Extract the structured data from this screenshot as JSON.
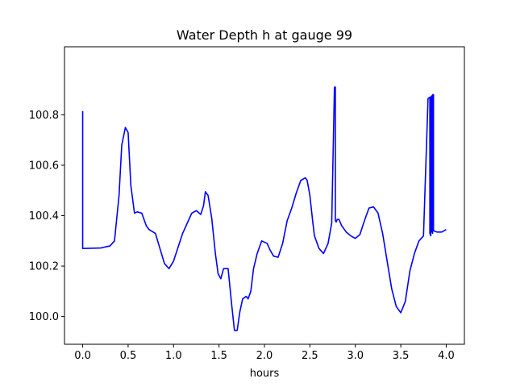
{
  "chart_data": {
    "type": "line",
    "title": "Water Depth h at gauge 99",
    "xlabel": "hours",
    "ylabel": "",
    "xlim": [
      -0.2,
      4.2
    ],
    "ylim": [
      99.89,
      101.07
    ],
    "xticks": [
      0.0,
      0.5,
      1.0,
      1.5,
      2.0,
      2.5,
      3.0,
      3.5,
      4.0
    ],
    "xtick_labels": [
      "0.0",
      "0.5",
      "1.0",
      "1.5",
      "2.0",
      "2.5",
      "3.0",
      "3.5",
      "4.0"
    ],
    "yticks": [
      100.0,
      100.2,
      100.4,
      100.6,
      100.8
    ],
    "ytick_labels": [
      "100.0",
      "100.2",
      "100.4",
      "100.6",
      "100.8"
    ],
    "grid": false,
    "series": [
      {
        "color": "#0000ff",
        "x": [
          0.0,
          0.0,
          0.0,
          0.2,
          0.3,
          0.35,
          0.4,
          0.43,
          0.47,
          0.5,
          0.53,
          0.57,
          0.6,
          0.65,
          0.7,
          0.73,
          0.8,
          0.85,
          0.9,
          0.95,
          1.0,
          1.1,
          1.2,
          1.25,
          1.3,
          1.33,
          1.35,
          1.38,
          1.42,
          1.46,
          1.49,
          1.52,
          1.55,
          1.6,
          1.64,
          1.67,
          1.7,
          1.73,
          1.76,
          1.8,
          1.82,
          1.85,
          1.88,
          1.92,
          1.97,
          2.03,
          2.06,
          2.1,
          2.15,
          2.2,
          2.25,
          2.3,
          2.35,
          2.4,
          2.45,
          2.47,
          2.5,
          2.53,
          2.55,
          2.6,
          2.65,
          2.7,
          2.74,
          2.77,
          2.78,
          2.78,
          2.79,
          2.8,
          2.82,
          2.85,
          2.9,
          2.95,
          3.0,
          3.05,
          3.1,
          3.15,
          3.2,
          3.25,
          3.3,
          3.35,
          3.4,
          3.45,
          3.5,
          3.55,
          3.6,
          3.65,
          3.7,
          3.75,
          3.8,
          3.82,
          3.82,
          3.83,
          3.83,
          3.84,
          3.84,
          3.85,
          3.85,
          3.86,
          3.86,
          3.9,
          3.95,
          4.0
        ],
        "y": [
          100.815,
          100.27,
          100.27,
          100.272,
          100.28,
          100.3,
          100.48,
          100.68,
          100.75,
          100.73,
          100.52,
          100.41,
          100.415,
          100.41,
          100.36,
          100.345,
          100.33,
          100.27,
          100.21,
          100.19,
          100.22,
          100.33,
          100.41,
          100.42,
          100.405,
          100.44,
          100.495,
          100.48,
          100.39,
          100.25,
          100.17,
          100.15,
          100.19,
          100.19,
          100.045,
          99.945,
          99.945,
          100.02,
          100.07,
          100.08,
          100.07,
          100.1,
          100.19,
          100.25,
          100.3,
          100.29,
          100.265,
          100.24,
          100.235,
          100.29,
          100.38,
          100.43,
          100.49,
          100.54,
          100.55,
          100.54,
          100.48,
          100.38,
          100.32,
          100.27,
          100.25,
          100.29,
          100.37,
          100.91,
          100.91,
          100.38,
          100.375,
          100.385,
          100.385,
          100.36,
          100.335,
          100.32,
          100.31,
          100.325,
          100.38,
          100.43,
          100.435,
          100.41,
          100.33,
          100.22,
          100.11,
          100.04,
          100.015,
          100.06,
          100.18,
          100.25,
          100.3,
          100.32,
          100.865,
          100.87,
          100.33,
          100.32,
          100.87,
          100.875,
          100.34,
          100.33,
          100.88,
          100.88,
          100.34,
          100.335,
          100.335,
          100.345
        ]
      }
    ]
  }
}
